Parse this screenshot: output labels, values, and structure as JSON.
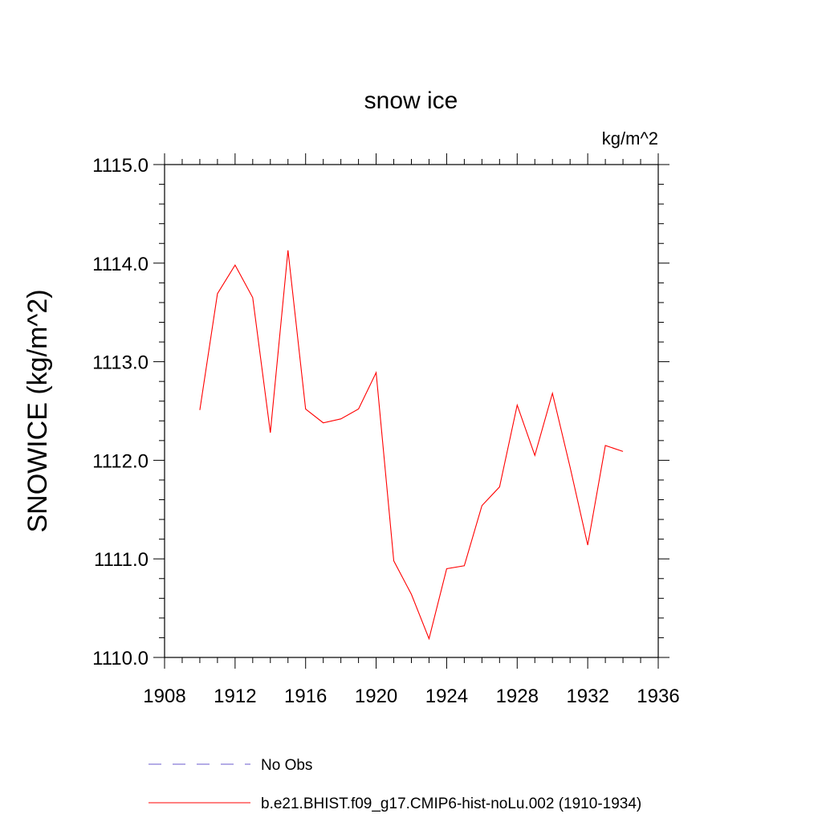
{
  "chart_data": {
    "type": "line",
    "title": "snow ice",
    "units_label": "kg/m^2",
    "ylabel": "SNOWICE  (kg/m^2)",
    "xlabel": "",
    "xlim": [
      1908,
      1936
    ],
    "ylim": [
      1110.0,
      1115.0
    ],
    "x_ticks": [
      1908,
      1912,
      1916,
      1920,
      1924,
      1928,
      1932,
      1936
    ],
    "y_ticks": [
      "1110.0",
      "1111.0",
      "1112.0",
      "1113.0",
      "1114.0",
      "1115.0"
    ],
    "grid": false,
    "legend_position": "bottom",
    "series": [
      {
        "name": "No Obs",
        "color": "#6a5acd",
        "dash": true,
        "x": [],
        "values": []
      },
      {
        "name": "b.e21.BHIST.f09_g17.CMIP6-hist-noLu.002 (1910-1934)",
        "color": "#ff0000",
        "dash": false,
        "x": [
          1910,
          1911,
          1912,
          1913,
          1914,
          1915,
          1916,
          1917,
          1918,
          1919,
          1920,
          1921,
          1922,
          1923,
          1924,
          1925,
          1926,
          1927,
          1928,
          1929,
          1930,
          1931,
          1932,
          1933,
          1934
        ],
        "values": [
          1112.51,
          1113.69,
          1113.98,
          1113.65,
          1112.28,
          1114.13,
          1112.52,
          1112.38,
          1112.42,
          1112.52,
          1112.89,
          1110.98,
          1110.64,
          1110.19,
          1110.9,
          1110.93,
          1111.54,
          1111.73,
          1112.56,
          1112.05,
          1112.68,
          1111.93,
          1111.14,
          1112.15,
          1112.09
        ]
      }
    ]
  }
}
